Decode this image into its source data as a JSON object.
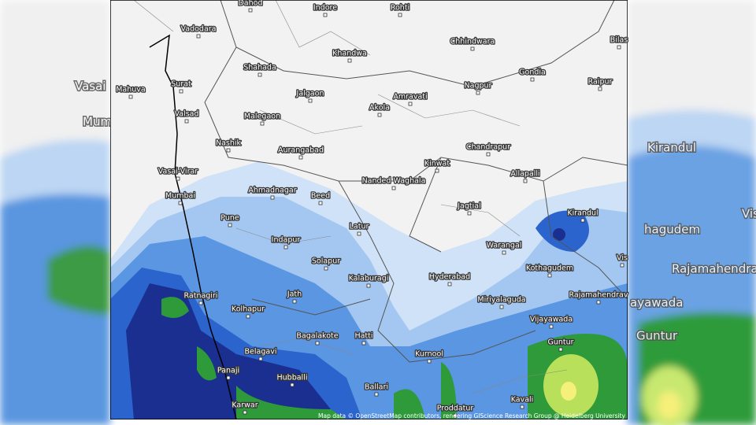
{
  "map": {
    "cities": [
      "Dahod",
      "Indore",
      "Rohti",
      "Vadodara",
      "Chhindwara",
      "Bilas",
      "Khandwa",
      "Shahada",
      "Gondia",
      "Mahuva",
      "Surat",
      "Nagpur",
      "Raipur",
      "Jalgaon",
      "Amravati",
      "Akola",
      "Valsad",
      "Malegaon",
      "Chandrapur",
      "Nashik",
      "Aurangabad",
      "Kinwat",
      "Allapalli",
      "Vasai-Virar",
      "Nanded Waghala",
      "Mumbai",
      "Ahmadnagar",
      "Beed",
      "Jagtial",
      "Kirandul",
      "Pune",
      "Latur",
      "Warangal",
      "Indapur",
      "Solapur",
      "Kothagudem",
      "Kalaburagi",
      "Hyderabad",
      "Ratnagiri",
      "Jath",
      "Rajamahendrav",
      "Miriyalaguda",
      "Kolhapur",
      "Vijayawada",
      "Bagalakote",
      "Hatti",
      "Guntur",
      "Belagavi",
      "Kurnool",
      "Panaji",
      "Hubballi",
      "Ballari",
      "Kavali",
      "Karwar",
      "Proddatur",
      "Vis"
    ],
    "side_labels": [
      "Vasai",
      "Mumb",
      "Kirandul",
      "hagudem",
      "Rajamahendrava",
      "ayawada",
      "Guntur",
      "Vis"
    ],
    "attribution": "Map data © OpenStreetMap contributors, rendering GIScience Research Group @ Heidelberg University"
  }
}
